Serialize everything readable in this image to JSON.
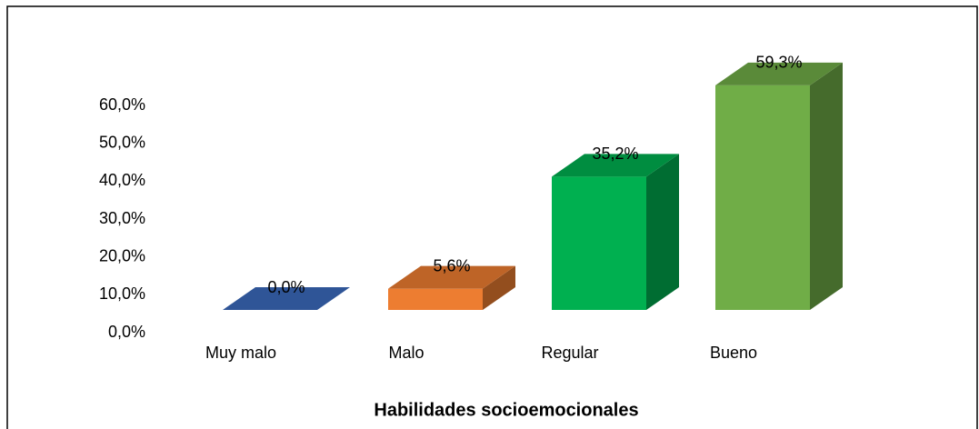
{
  "chart_data": {
    "type": "bar3d",
    "title": "Habilidades socioemocionales",
    "categories": [
      "Muy malo",
      "Malo",
      "Regular",
      "Bueno"
    ],
    "values": [
      0,
      5.6,
      35.2,
      59.3
    ],
    "value_labels": [
      "0,0%",
      "5,6%",
      "35,2%",
      "59,3%"
    ],
    "colors": [
      "#2f5597",
      "#ed7d31",
      "#00b050",
      "#70ad47"
    ],
    "ylim": [
      0,
      60
    ],
    "yticks": [
      {
        "value": 0,
        "label": "0,0%"
      },
      {
        "value": 10,
        "label": "10,0%"
      },
      {
        "value": 20,
        "label": "20,0%"
      },
      {
        "value": 30,
        "label": "30,0%"
      },
      {
        "value": 40,
        "label": "40,0%"
      },
      {
        "value": 50,
        "label": "50,0%"
      },
      {
        "value": 60,
        "label": "60,0%"
      }
    ],
    "grid": false
  }
}
